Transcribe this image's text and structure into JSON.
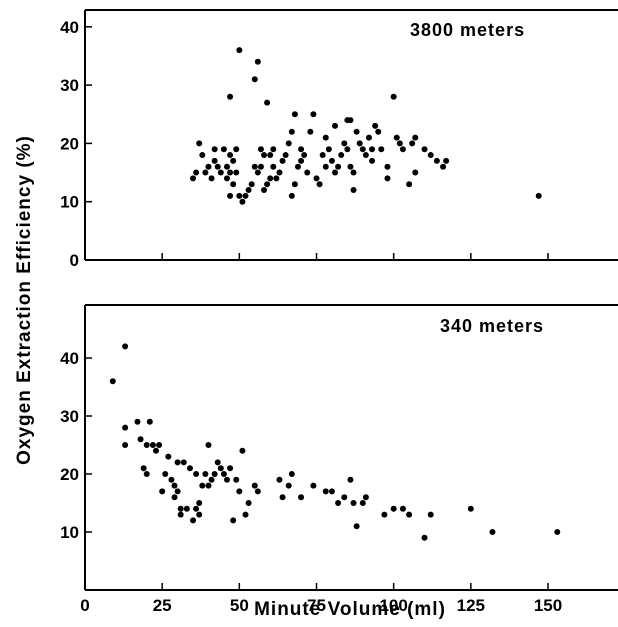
{
  "chart_data": [
    {
      "type": "scatter",
      "panel_label": "3800 meters",
      "xlim": [
        0,
        160
      ],
      "ylim": [
        0,
        44
      ],
      "yticks": [
        0,
        10,
        20,
        30,
        40
      ],
      "xticks": [
        0,
        25,
        50,
        75,
        100,
        125,
        150
      ],
      "x_tick_labels_shown": false,
      "points": [
        [
          35,
          14
        ],
        [
          36,
          15
        ],
        [
          37,
          20
        ],
        [
          38,
          18
        ],
        [
          39,
          15
        ],
        [
          40,
          16
        ],
        [
          41,
          14
        ],
        [
          42,
          19
        ],
        [
          42,
          17
        ],
        [
          43,
          16
        ],
        [
          44,
          15
        ],
        [
          45,
          19
        ],
        [
          46,
          14
        ],
        [
          46,
          16
        ],
        [
          47,
          15
        ],
        [
          47,
          18
        ],
        [
          47,
          11
        ],
        [
          47,
          28
        ],
        [
          48,
          13
        ],
        [
          48,
          17
        ],
        [
          49,
          15
        ],
        [
          49,
          19
        ],
        [
          50,
          36
        ],
        [
          50,
          11
        ],
        [
          51,
          10
        ],
        [
          52,
          11
        ],
        [
          53,
          12
        ],
        [
          54,
          13
        ],
        [
          55,
          16
        ],
        [
          55,
          31
        ],
        [
          56,
          34
        ],
        [
          56,
          15
        ],
        [
          57,
          19
        ],
        [
          57,
          16
        ],
        [
          58,
          12
        ],
        [
          58,
          18
        ],
        [
          59,
          27
        ],
        [
          59,
          13
        ],
        [
          60,
          14
        ],
        [
          60,
          18
        ],
        [
          61,
          16
        ],
        [
          61,
          19
        ],
        [
          62,
          14
        ],
        [
          63,
          15
        ],
        [
          64,
          17
        ],
        [
          65,
          18
        ],
        [
          66,
          20
        ],
        [
          67,
          22
        ],
        [
          67,
          11
        ],
        [
          68,
          13
        ],
        [
          68,
          25
        ],
        [
          69,
          16
        ],
        [
          70,
          17
        ],
        [
          70,
          19
        ],
        [
          71,
          18
        ],
        [
          72,
          15
        ],
        [
          73,
          22
        ],
        [
          74,
          25
        ],
        [
          75,
          14
        ],
        [
          76,
          13
        ],
        [
          77,
          18
        ],
        [
          78,
          21
        ],
        [
          78,
          16
        ],
        [
          79,
          19
        ],
        [
          80,
          17
        ],
        [
          81,
          15
        ],
        [
          81,
          23
        ],
        [
          82,
          16
        ],
        [
          83,
          18
        ],
        [
          84,
          20
        ],
        [
          85,
          24
        ],
        [
          85,
          19
        ],
        [
          86,
          16
        ],
        [
          86,
          24
        ],
        [
          87,
          15
        ],
        [
          87,
          12
        ],
        [
          88,
          22
        ],
        [
          89,
          20
        ],
        [
          90,
          19
        ],
        [
          91,
          18
        ],
        [
          92,
          21
        ],
        [
          93,
          19
        ],
        [
          93,
          17
        ],
        [
          94,
          23
        ],
        [
          95,
          22
        ],
        [
          96,
          19
        ],
        [
          98,
          14
        ],
        [
          98,
          16
        ],
        [
          100,
          28
        ],
        [
          101,
          21
        ],
        [
          102,
          20
        ],
        [
          103,
          19
        ],
        [
          105,
          13
        ],
        [
          106,
          20
        ],
        [
          107,
          21
        ],
        [
          107,
          15
        ],
        [
          110,
          19
        ],
        [
          112,
          18
        ],
        [
          114,
          17
        ],
        [
          116,
          16
        ],
        [
          117,
          17
        ],
        [
          147,
          11
        ]
      ]
    },
    {
      "type": "scatter",
      "panel_label": "340 meters",
      "xlim": [
        0,
        160
      ],
      "ylim": [
        0,
        46
      ],
      "yticks": [
        10,
        20,
        30,
        40
      ],
      "xticks": [
        0,
        25,
        50,
        75,
        100,
        125,
        150
      ],
      "x_tick_labels": [
        "0",
        "25",
        "50",
        "75",
        "100",
        "125",
        "150"
      ],
      "xlabel": "Minute Volume (ml)",
      "points": [
        [
          9,
          36
        ],
        [
          13,
          42
        ],
        [
          13,
          28
        ],
        [
          13,
          25
        ],
        [
          17,
          29
        ],
        [
          18,
          26
        ],
        [
          19,
          21
        ],
        [
          20,
          25
        ],
        [
          20,
          20
        ],
        [
          21,
          29
        ],
        [
          22,
          25
        ],
        [
          23,
          24
        ],
        [
          24,
          25
        ],
        [
          25,
          17
        ],
        [
          26,
          20
        ],
        [
          27,
          23
        ],
        [
          28,
          19
        ],
        [
          29,
          18
        ],
        [
          29,
          16
        ],
        [
          30,
          22
        ],
        [
          30,
          17
        ],
        [
          31,
          14
        ],
        [
          31,
          13
        ],
        [
          32,
          22
        ],
        [
          33,
          14
        ],
        [
          34,
          21
        ],
        [
          35,
          12
        ],
        [
          36,
          20
        ],
        [
          36,
          14
        ],
        [
          37,
          15
        ],
        [
          37,
          13
        ],
        [
          38,
          18
        ],
        [
          39,
          20
        ],
        [
          40,
          18
        ],
        [
          40,
          25
        ],
        [
          41,
          19
        ],
        [
          42,
          20
        ],
        [
          43,
          22
        ],
        [
          44,
          21
        ],
        [
          45,
          20
        ],
        [
          46,
          19
        ],
        [
          47,
          21
        ],
        [
          48,
          12
        ],
        [
          49,
          19
        ],
        [
          50,
          17
        ],
        [
          51,
          24
        ],
        [
          52,
          13
        ],
        [
          53,
          15
        ],
        [
          55,
          18
        ],
        [
          56,
          17
        ],
        [
          63,
          19
        ],
        [
          64,
          16
        ],
        [
          66,
          18
        ],
        [
          67,
          20
        ],
        [
          70,
          16
        ],
        [
          74,
          18
        ],
        [
          78,
          17
        ],
        [
          80,
          17
        ],
        [
          82,
          15
        ],
        [
          84,
          16
        ],
        [
          86,
          19
        ],
        [
          87,
          15
        ],
        [
          88,
          11
        ],
        [
          90,
          15
        ],
        [
          91,
          16
        ],
        [
          97,
          13
        ],
        [
          100,
          14
        ],
        [
          103,
          14
        ],
        [
          105,
          13
        ],
        [
          110,
          9
        ],
        [
          112,
          13
        ],
        [
          125,
          14
        ],
        [
          132,
          10
        ],
        [
          153,
          10
        ]
      ]
    }
  ],
  "ylabel": "Oxygen Extraction  Efficiency  (%)"
}
